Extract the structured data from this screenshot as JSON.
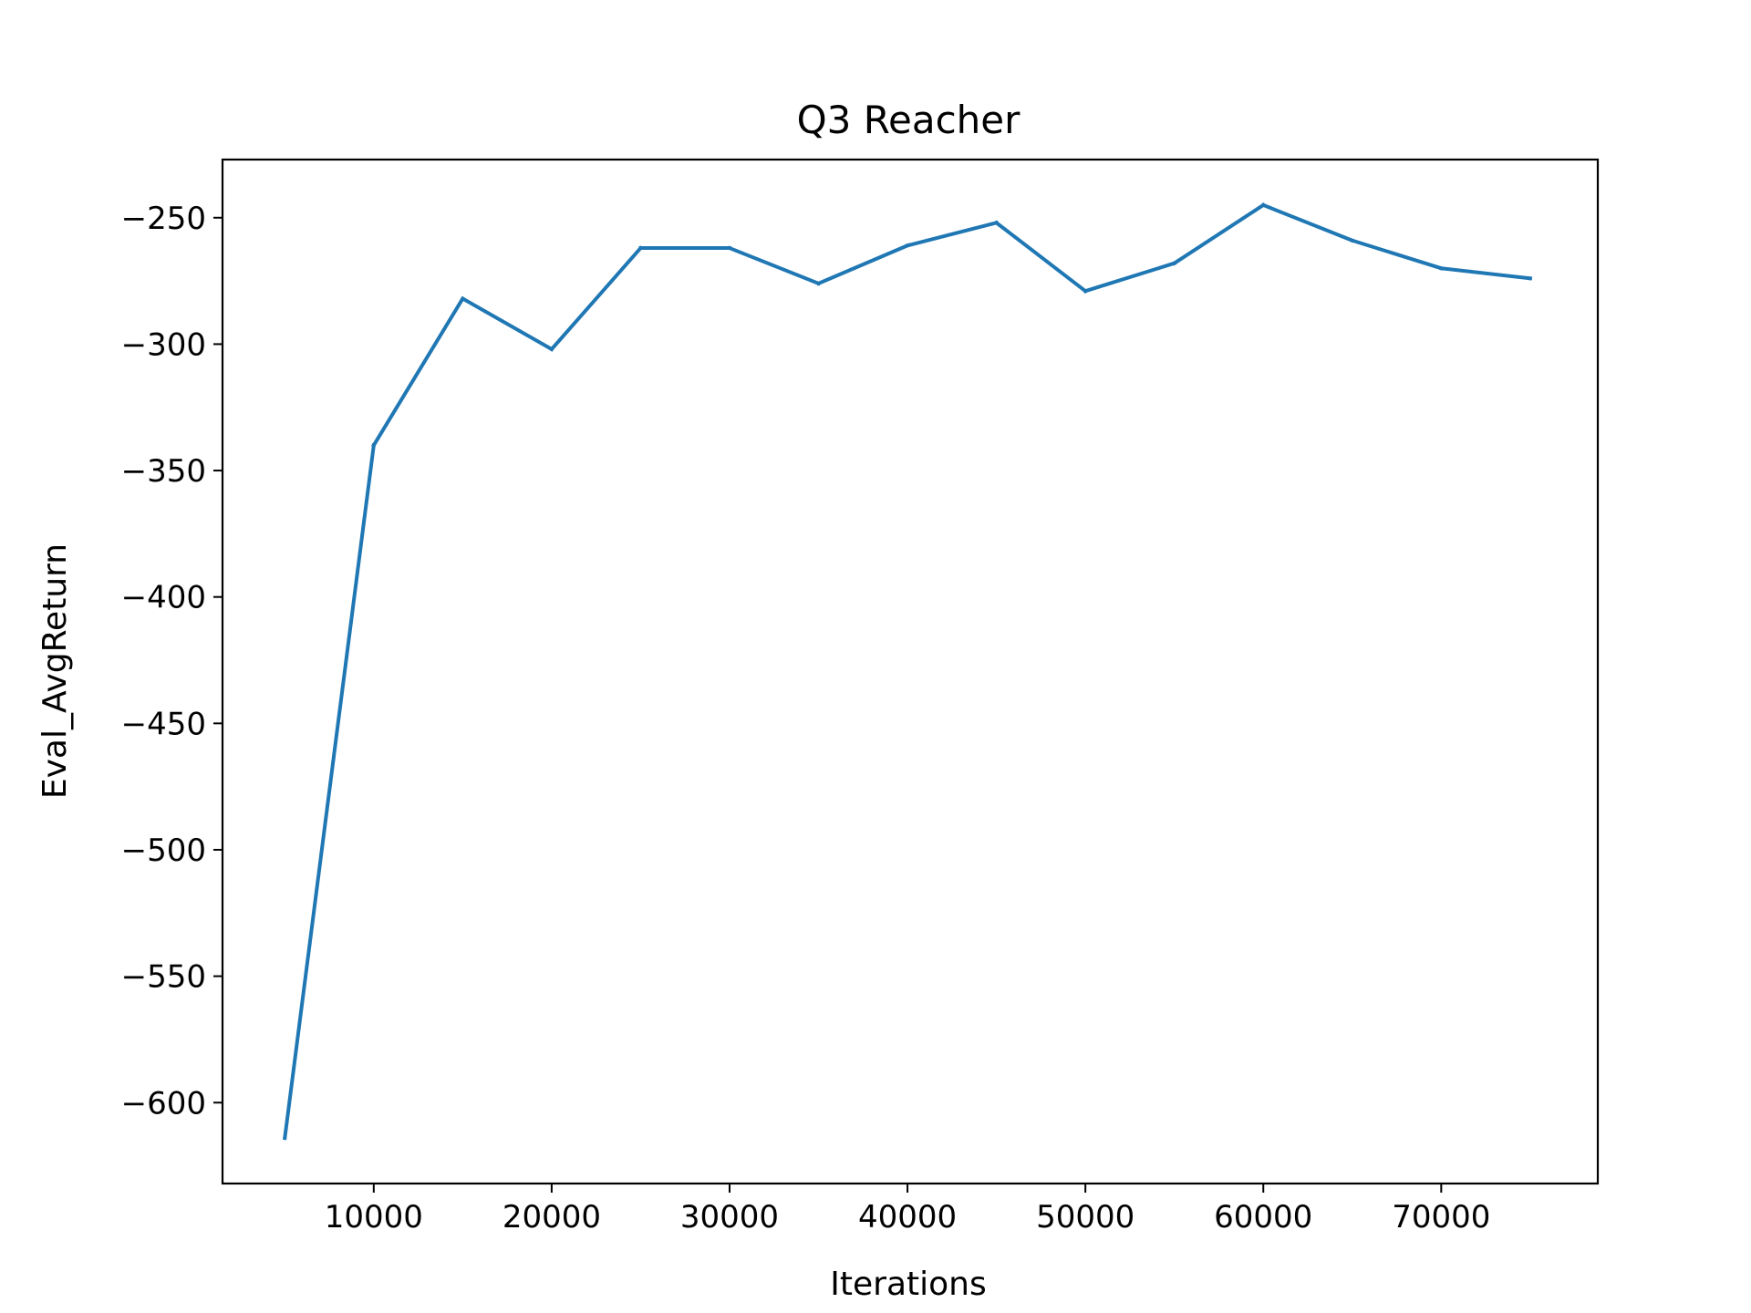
{
  "chart_data": {
    "type": "line",
    "title": "Q3 Reacher",
    "xlabel": "Iterations",
    "ylabel": "Eval_AvgReturn",
    "xlim": [
      1500,
      78800
    ],
    "ylim": [
      -632,
      -227
    ],
    "x_ticks": [
      10000,
      20000,
      30000,
      40000,
      50000,
      60000,
      70000
    ],
    "y_ticks": [
      -250,
      -300,
      -350,
      -400,
      -450,
      -500,
      -550,
      -600
    ],
    "x_tick_labels": [
      "10000",
      "20000",
      "30000",
      "40000",
      "50000",
      "60000",
      "70000"
    ],
    "y_tick_labels": [
      "−250",
      "−300",
      "−350",
      "−400",
      "−450",
      "−500",
      "−550",
      "−600"
    ],
    "grid": false,
    "series": [
      {
        "color": "#1f77b4",
        "x": [
          5000,
          10000,
          15000,
          20000,
          25000,
          30000,
          35000,
          40000,
          45000,
          50000,
          55000,
          60000,
          65000,
          70000,
          75000
        ],
        "y": [
          -614,
          -340,
          -282,
          -302,
          -262,
          -262,
          -276,
          -261,
          -252,
          -279,
          -268,
          -245,
          -259,
          -270,
          -274
        ]
      }
    ]
  }
}
